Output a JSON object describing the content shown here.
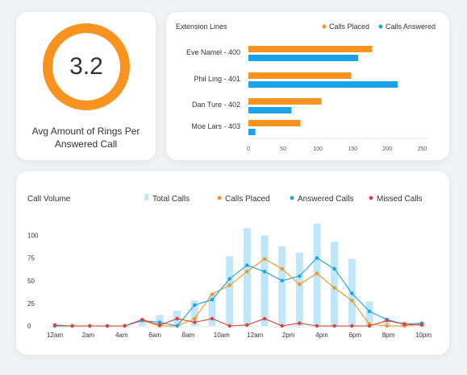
{
  "rings_card": {
    "value": "3.2",
    "caption": "Avg Amount of Rings Per Answered Call",
    "value_fraction": 1.0
  },
  "colors": {
    "orange": "#f7931e",
    "blue": "#1aa3e8",
    "light_blue": "#bfe6f9",
    "red": "#d9433b"
  },
  "chart_data": [
    {
      "type": "bar",
      "orientation": "horizontal",
      "title": "Extension Lines",
      "categories": [
        "Eve Namel  - 400",
        "Phil Ling  - 401",
        "Dan Ture  - 402",
        "Moe Lars  - 403"
      ],
      "series": [
        {
          "name": "Calls Placed",
          "color": "#f7931e",
          "values": [
            178,
            148,
            105,
            75
          ]
        },
        {
          "name": "Calls Answered",
          "color": "#1aa3e8",
          "values": [
            158,
            215,
            62,
            10
          ]
        }
      ],
      "xlim": [
        0,
        260
      ],
      "xticks": [
        0,
        50,
        100,
        150,
        200,
        250
      ],
      "legend": "top-right"
    },
    {
      "type": "bar-line",
      "title": "Call Volume",
      "x_labels": [
        "12am",
        "2am",
        "4am",
        "6am",
        "8am",
        "10am",
        "12am",
        "2pm",
        "4pm",
        "6pm",
        "8pm",
        "10pm"
      ],
      "ylim": [
        0,
        120
      ],
      "yticks": [
        0,
        25,
        50,
        75,
        100
      ],
      "legend": "top",
      "series": [
        {
          "name": "Total Calls",
          "kind": "bar",
          "color": "#bfe6f9",
          "values": [
            0,
            0,
            0,
            0,
            0,
            7,
            12,
            17,
            28,
            35,
            77,
            108,
            100,
            88,
            81,
            113,
            93,
            74,
            27,
            9,
            5,
            3
          ]
        },
        {
          "name": "Calls Placed",
          "kind": "line",
          "color": "#f7931e",
          "values": [
            0,
            0,
            0,
            0,
            0,
            6,
            0,
            0,
            8,
            35,
            45,
            60,
            74,
            63,
            46,
            58,
            42,
            28,
            2,
            0,
            0,
            2
          ]
        },
        {
          "name": "Answered Calls",
          "kind": "line",
          "color": "#1aa3e8",
          "values": [
            0,
            0,
            0,
            0,
            0,
            6,
            4,
            0,
            23,
            29,
            52,
            67,
            60,
            50,
            55,
            75,
            63,
            36,
            16,
            7,
            2,
            3
          ]
        },
        {
          "name": "Missed Calls",
          "kind": "line",
          "color": "#d9433b",
          "values": [
            1,
            0,
            0,
            0,
            0,
            7,
            1,
            8,
            4,
            8,
            0,
            1,
            8,
            0,
            3,
            0,
            0,
            0,
            0,
            6,
            2,
            1
          ]
        }
      ]
    }
  ]
}
